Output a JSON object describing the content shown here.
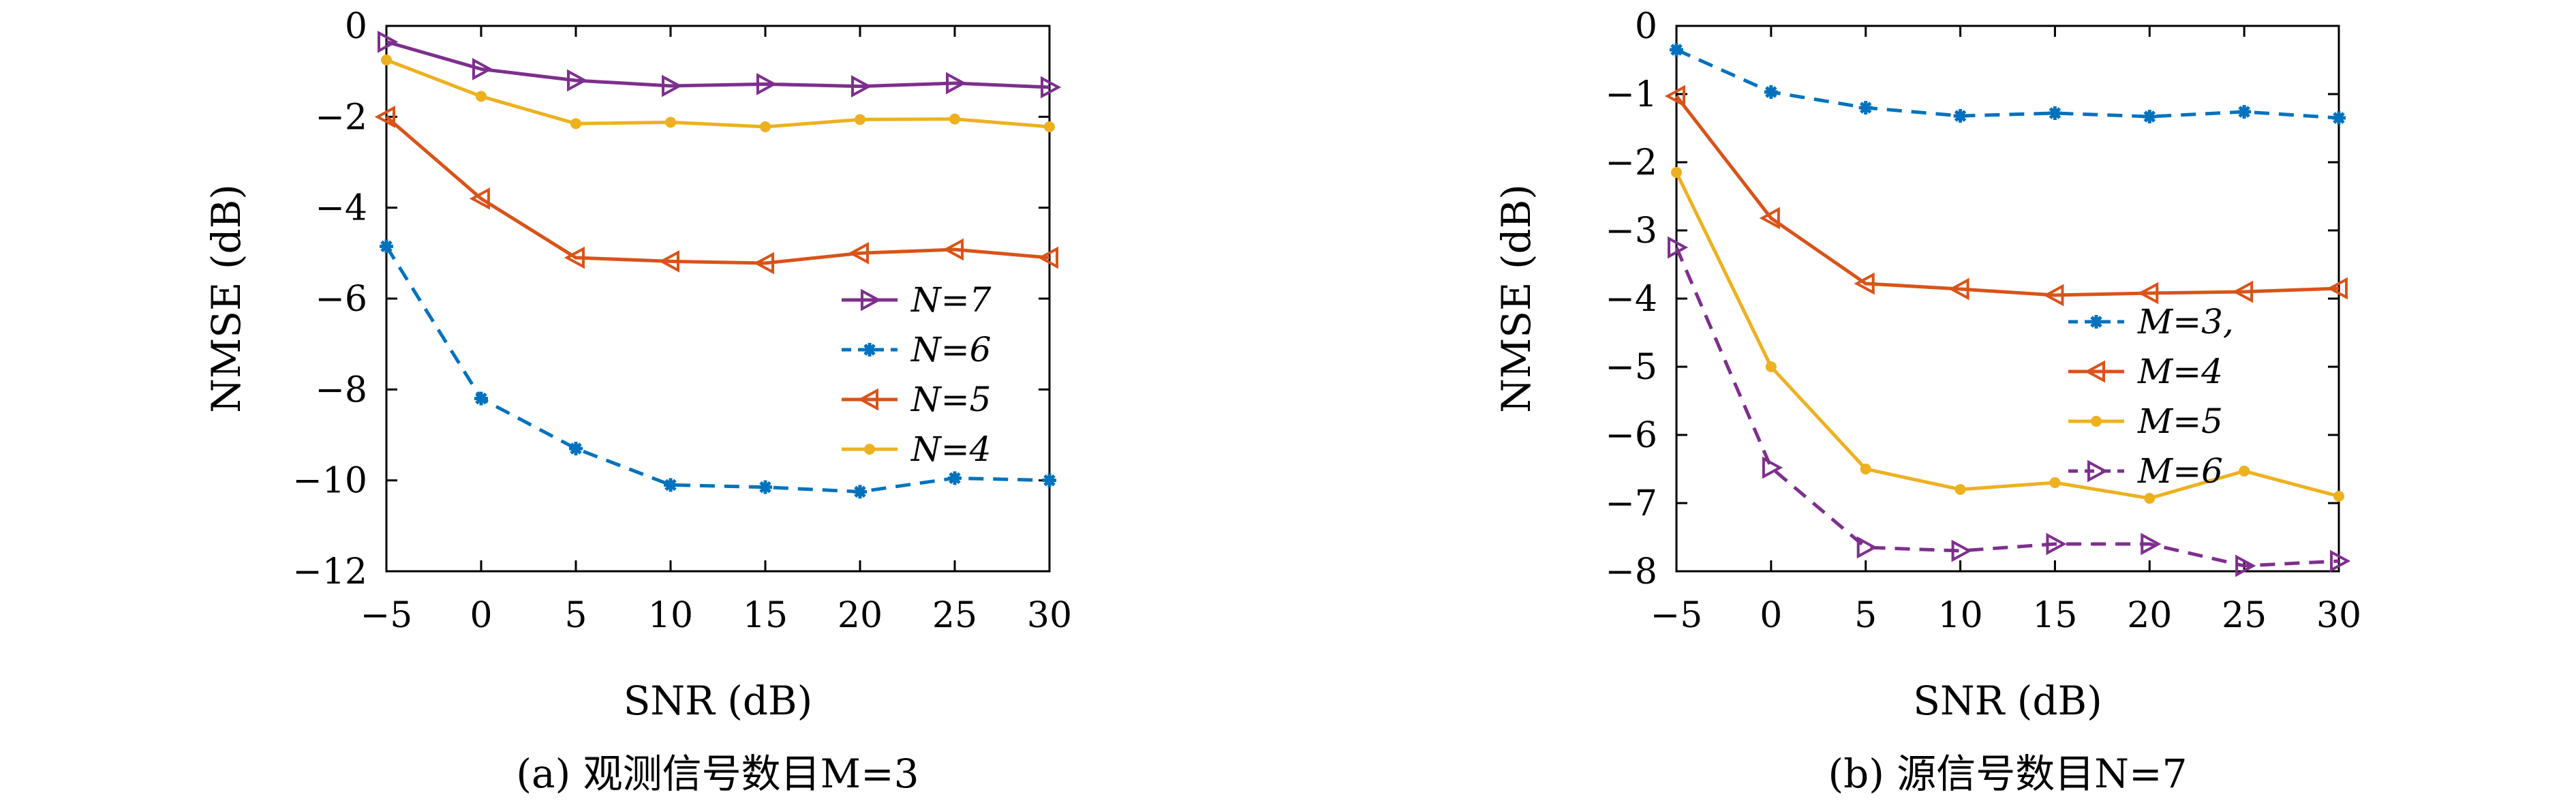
{
  "chart_data": [
    {
      "type": "line",
      "xlabel": "SNR (dB)",
      "ylabel": "NMSE (dB)",
      "caption": "(a) 观测信号数目M=3",
      "xlim": [
        -5,
        30
      ],
      "ylim": [
        -12,
        0
      ],
      "xticks": [
        -5,
        0,
        5,
        10,
        15,
        20,
        25,
        30
      ],
      "xtick_labels": [
        "−5",
        "0",
        "5",
        "10",
        "15",
        "20",
        "25",
        "30"
      ],
      "yticks": [
        0,
        -2,
        -4,
        -6,
        -8,
        -10,
        -12
      ],
      "ytick_labels": [
        "0",
        "−2",
        "−4",
        "−6",
        "−8",
        "−10",
        "−12"
      ],
      "x": [
        -5,
        0,
        5,
        10,
        15,
        20,
        25,
        30
      ],
      "legend_position": "center-right",
      "grid": false,
      "series": [
        {
          "name": "N=7",
          "color": "#7e2f8e",
          "dash": "solid",
          "marker": "triangle-right",
          "values": [
            -0.35,
            -0.95,
            -1.2,
            -1.32,
            -1.28,
            -1.33,
            -1.26,
            -1.35
          ]
        },
        {
          "name": "N=6",
          "color": "#0072bd",
          "dash": "dashed",
          "marker": "asterisk",
          "values": [
            -4.85,
            -8.2,
            -9.3,
            -10.1,
            -10.15,
            -10.25,
            -9.95,
            -10.0
          ]
        },
        {
          "name": "N=5",
          "color": "#d95319",
          "dash": "solid",
          "marker": "triangle-left",
          "values": [
            -2.0,
            -3.8,
            -5.1,
            -5.18,
            -5.22,
            -5.0,
            -4.92,
            -5.1
          ]
        },
        {
          "name": "N=4",
          "color": "#edb120",
          "dash": "solid",
          "marker": "dot",
          "values": [
            -0.75,
            -1.55,
            -2.15,
            -2.12,
            -2.22,
            -2.06,
            -2.05,
            -2.22
          ]
        }
      ]
    },
    {
      "type": "line",
      "xlabel": "SNR (dB)",
      "ylabel": "NMSE (dB)",
      "caption": "(b) 源信号数目N=7",
      "xlim": [
        -5,
        30
      ],
      "ylim": [
        -8,
        0
      ],
      "xticks": [
        -5,
        0,
        5,
        10,
        15,
        20,
        25,
        30
      ],
      "xtick_labels": [
        "−5",
        "0",
        "5",
        "10",
        "15",
        "20",
        "25",
        "30"
      ],
      "yticks": [
        0,
        -1,
        -2,
        -3,
        -4,
        -5,
        -6,
        -7,
        -8
      ],
      "ytick_labels": [
        "0",
        "−1",
        "−2",
        "−3",
        "−4",
        "−5",
        "−6",
        "−7",
        "−8"
      ],
      "x": [
        -5,
        0,
        5,
        10,
        15,
        20,
        25,
        30
      ],
      "legend_position": "center-right",
      "grid": false,
      "series": [
        {
          "name": "M=3,",
          "color": "#0072bd",
          "dash": "dashed",
          "marker": "asterisk",
          "values": [
            -0.35,
            -0.97,
            -1.2,
            -1.32,
            -1.28,
            -1.33,
            -1.26,
            -1.35
          ]
        },
        {
          "name": "M=4",
          "color": "#d95319",
          "dash": "solid",
          "marker": "triangle-left",
          "values": [
            -1.03,
            -2.82,
            -3.78,
            -3.86,
            -3.95,
            -3.92,
            -3.9,
            -3.85
          ]
        },
        {
          "name": "M=5",
          "color": "#edb120",
          "dash": "solid",
          "marker": "dot",
          "values": [
            -2.15,
            -5.0,
            -6.5,
            -6.8,
            -6.7,
            -6.93,
            -6.53,
            -6.9
          ]
        },
        {
          "name": "M=6",
          "color": "#7e2f8e",
          "dash": "dashed",
          "marker": "triangle-right",
          "values": [
            -3.25,
            -6.48,
            -7.65,
            -7.7,
            -7.6,
            -7.6,
            -7.92,
            -7.85
          ]
        }
      ]
    }
  ]
}
